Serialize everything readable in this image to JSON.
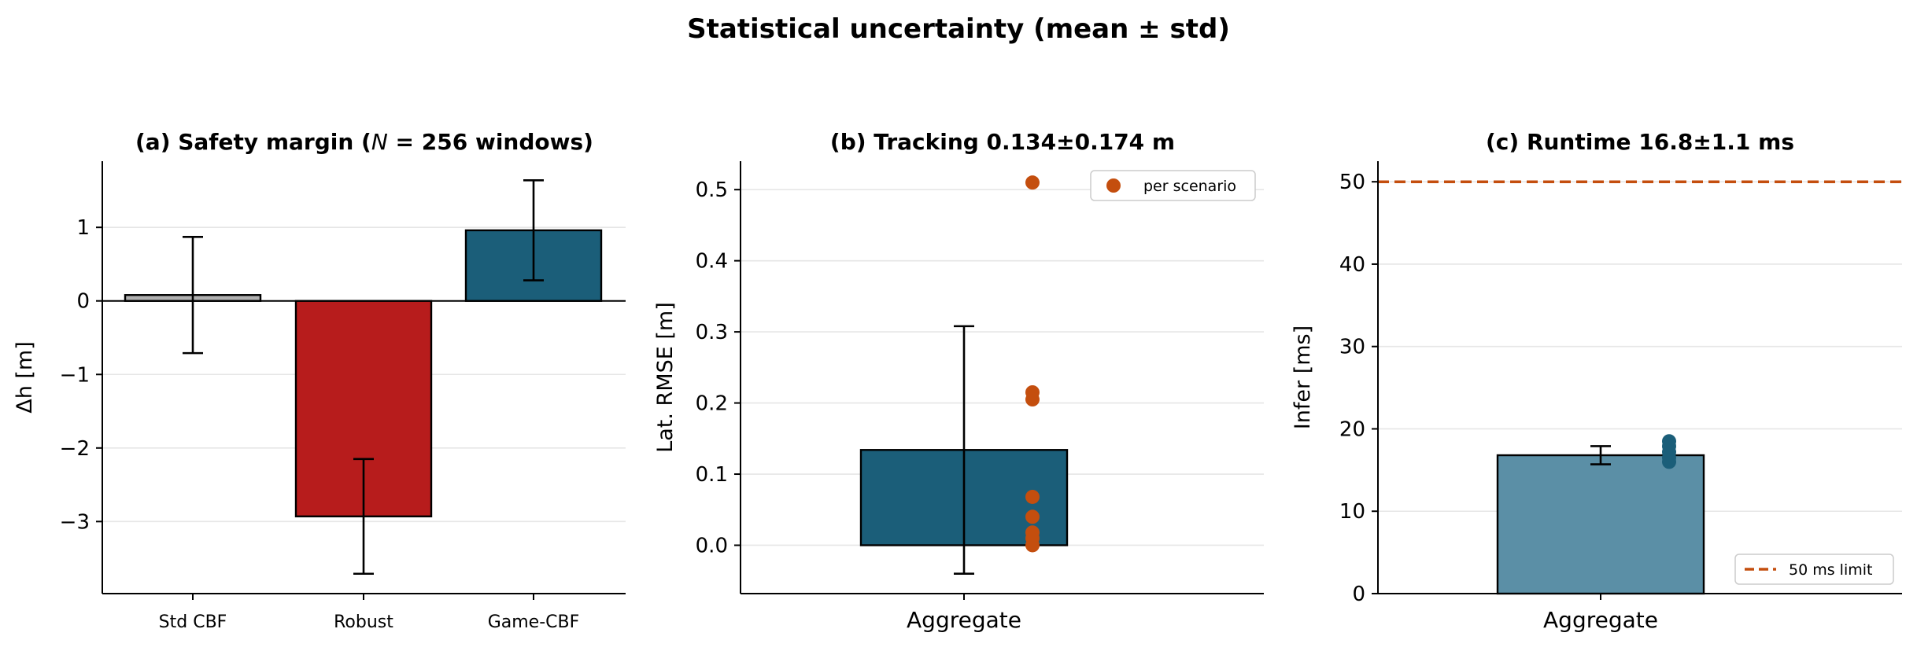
{
  "figure": {
    "suptitle": "Statistical uncertainty (mean ± std)"
  },
  "chart_data": [
    {
      "type": "bar",
      "title": "(a) Safety margin (N = 256 windows)",
      "title_parts": {
        "pre": "(a) Safety margin (",
        "var": "N",
        "post": " = 256 windows)"
      },
      "ylabel": "Δh [m]",
      "categories": [
        "Std CBF",
        "Robust",
        "Game-CBF"
      ],
      "values": [
        0.08,
        -2.93,
        0.96
      ],
      "errors": [
        0.79,
        0.78,
        0.68
      ],
      "colors": [
        "#b0b0b0",
        "#b71c1c",
        "#1b5e79"
      ],
      "ylim": [
        -3.98,
        1.9
      ],
      "yticks": [
        -3,
        -2,
        -1,
        0,
        1
      ],
      "ytick_labels": [
        "−3",
        "−2",
        "−1",
        "0",
        "1"
      ],
      "grid": "y",
      "zero_line": true
    },
    {
      "type": "bar",
      "title": "(b) Tracking  0.134±0.174 m",
      "ylabel": "Lat. RMSE [m]",
      "categories": [
        "Aggregate"
      ],
      "values": [
        0.134
      ],
      "errors": [
        0.174
      ],
      "colors": [
        "#1b5e79"
      ],
      "scatter": {
        "name": "per scenario",
        "color": "#c44e0e",
        "values": [
          0.51,
          0.215,
          0.205,
          0.068,
          0.04,
          0.018,
          0.01,
          0.0
        ]
      },
      "ylim": [
        -0.068,
        0.54
      ],
      "yticks": [
        0.0,
        0.1,
        0.2,
        0.3,
        0.4,
        0.5
      ],
      "ytick_labels": [
        "0.0",
        "0.1",
        "0.2",
        "0.3",
        "0.4",
        "0.5"
      ],
      "grid": "y",
      "legend": {
        "position": "top-right",
        "label": "per scenario"
      }
    },
    {
      "type": "bar",
      "title": "(c) Runtime  16.8±1.1 ms",
      "ylabel": "Infer [ms]",
      "categories": [
        "Aggregate"
      ],
      "values": [
        16.8
      ],
      "errors": [
        1.1
      ],
      "colors": [
        "#5b8fa6"
      ],
      "scatter": {
        "color": "#1b5e79",
        "values": [
          18.5,
          17.9,
          17.2,
          16.5,
          16.0
        ]
      },
      "hline": {
        "value": 50,
        "name": "50 ms limit",
        "color": "#c44e0e",
        "style": "dashed"
      },
      "ylim": [
        0,
        52.5
      ],
      "yticks": [
        0,
        10,
        20,
        30,
        40,
        50
      ],
      "ytick_labels": [
        "0",
        "10",
        "20",
        "30",
        "40",
        "50"
      ],
      "grid": "y",
      "legend": {
        "position": "bottom-right",
        "label": "50 ms limit"
      }
    }
  ]
}
